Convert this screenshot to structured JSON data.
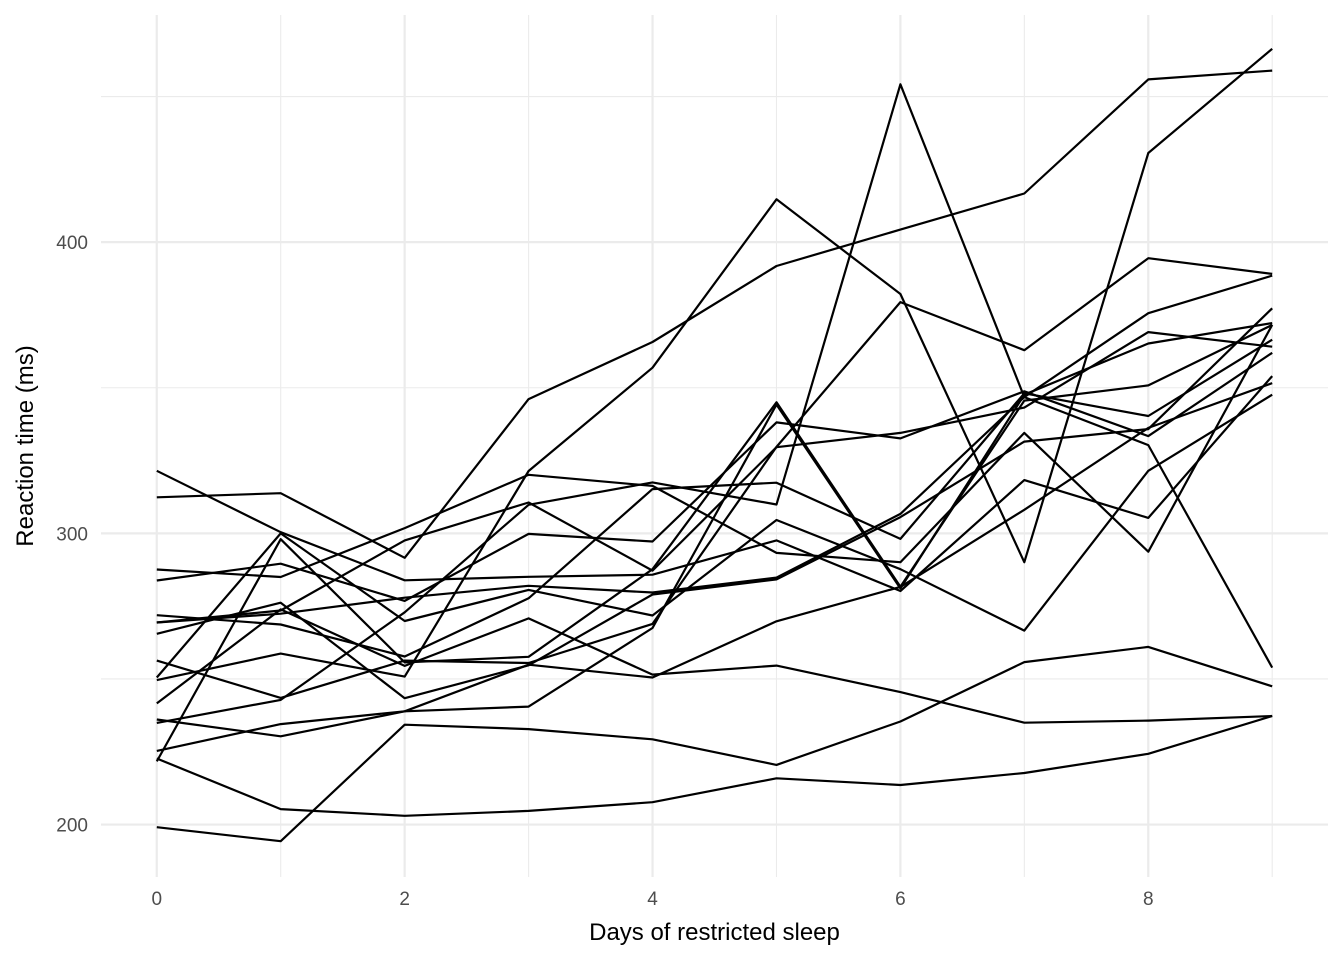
{
  "chart_data": {
    "type": "line",
    "xlabel": "Days of restricted sleep",
    "ylabel": "Reaction time (ms)",
    "xlim": [
      -0.45,
      9.45
    ],
    "ylim": [
      182,
      478
    ],
    "x_major_ticks": [
      0,
      2,
      4,
      6,
      8
    ],
    "x_minor_ticks": [
      1,
      3,
      5,
      7,
      9
    ],
    "y_major_ticks": [
      200,
      300,
      400
    ],
    "y_minor_ticks": [
      250,
      350,
      450
    ],
    "grid": true,
    "legend": "none",
    "line_color": "#000000",
    "x": [
      0,
      1,
      2,
      3,
      4,
      5,
      6,
      7,
      8,
      9
    ],
    "series": [
      {
        "values": [
          249.6,
          258.7,
          250.8,
          321.4,
          356.9,
          414.7,
          382.2,
          290.1,
          430.6,
          466.4
        ]
      },
      {
        "values": [
          222.7,
          205.3,
          203.0,
          204.7,
          207.7,
          215.9,
          213.6,
          217.7,
          224.3,
          237.3
        ]
      },
      {
        "values": [
          199.1,
          194.3,
          234.3,
          232.8,
          229.3,
          220.5,
          235.4,
          255.8,
          261.0,
          247.5
        ]
      },
      {
        "values": [
          321.5,
          300.4,
          283.9,
          285.1,
          285.8,
          297.6,
          280.2,
          318.3,
          305.3,
          354.0
        ]
      },
      {
        "values": [
          287.6,
          285.0,
          301.8,
          320.1,
          316.3,
          293.3,
          290.1,
          334.5,
          293.7,
          371.6
        ]
      },
      {
        "values": [
          234.9,
          242.8,
          272.9,
          309.8,
          317.5,
          309.9,
          454.2,
          346.8,
          330.3,
          253.9
        ]
      },
      {
        "values": [
          283.8,
          289.6,
          276.8,
          299.8,
          297.2,
          338.1,
          332.6,
          348.8,
          333.4,
          362.0
        ]
      },
      {
        "values": [
          265.5,
          276.2,
          243.4,
          254.7,
          279.0,
          284.2,
          305.6,
          331.5,
          335.8,
          377.3
        ]
      },
      {
        "values": [
          241.6,
          273.9,
          254.5,
          270.8,
          251.5,
          254.6,
          245.5,
          235.0,
          235.7,
          237.3
        ]
      },
      {
        "values": [
          312.4,
          313.8,
          291.6,
          346.1,
          365.7,
          391.8,
          404.3,
          416.7,
          455.9,
          458.9
        ]
      },
      {
        "values": [
          236.1,
          230.3,
          238.9,
          254.9,
          250.5,
          269.8,
          281.6,
          308.1,
          336.2,
          351.6
        ]
      },
      {
        "values": [
          256.3,
          243.5,
          256.3,
          255.5,
          268.9,
          329.7,
          379.4,
          362.9,
          394.5,
          389.1
        ]
      },
      {
        "values": [
          250.5,
          300.0,
          269.9,
          280.6,
          271.8,
          304.6,
          287.7,
          266.6,
          321.5,
          347.6
        ]
      },
      {
        "values": [
          221.7,
          298.0,
          255.7,
          257.6,
          287.7,
          345.0,
          281.7,
          345.6,
          350.8,
          371.6
        ]
      },
      {
        "values": [
          271.9,
          268.7,
          257.7,
          277.7,
          315.2,
          317.4,
          298.1,
          348.1,
          340.3,
          366.5
        ]
      },
      {
        "values": [
          225.3,
          234.5,
          238.9,
          240.5,
          267.5,
          344.2,
          281.1,
          347.6,
          365.2,
          372.2
        ]
      },
      {
        "values": [
          269.4,
          273.5,
          297.6,
          310.6,
          287.2,
          329.6,
          334.5,
          343.2,
          369.1,
          364.1
        ]
      },
      {
        "values": [
          269.4,
          272.4,
          277.9,
          282.0,
          279.7,
          284.8,
          306.7,
          346.8,
          375.6,
          388.5
        ]
      }
    ]
  }
}
